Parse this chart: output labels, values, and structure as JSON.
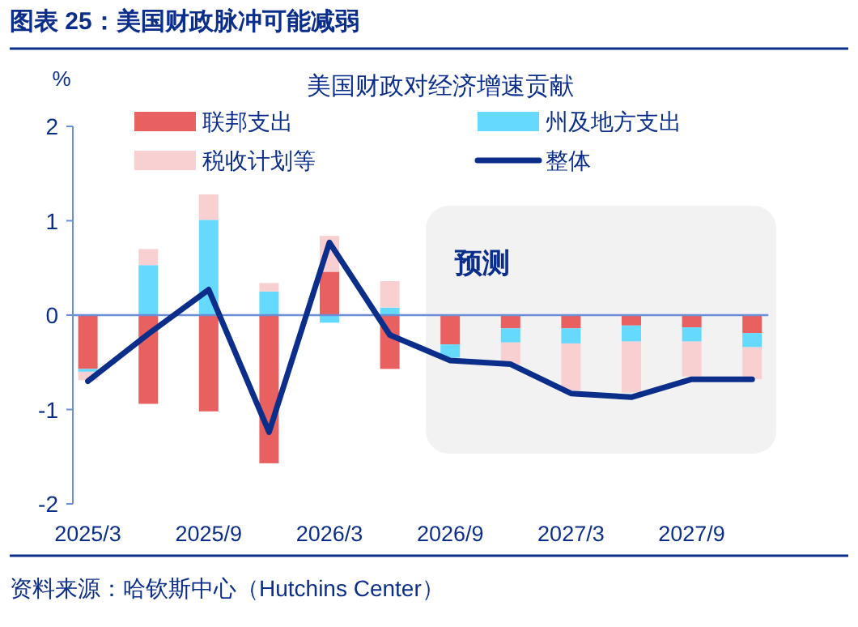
{
  "chart_data": {
    "type": "bar",
    "stacked": true,
    "title": "图表 25：美国财政脉冲可能减弱",
    "subtitle": "美国财政对经济增速贡献",
    "ylabel": "%",
    "categories": [
      "2025/3",
      null,
      "2025/9",
      null,
      "2026/3",
      null,
      "2026/9",
      null,
      "2027/3",
      null,
      "2027/9",
      null
    ],
    "series": [
      {
        "name": "联邦支出",
        "color": "#e86060",
        "values": [
          -0.57,
          -0.94,
          -1.02,
          -1.57,
          0.46,
          -0.57,
          -0.31,
          -0.14,
          -0.14,
          -0.11,
          -0.13,
          -0.19
        ]
      },
      {
        "name": "州及地方支出",
        "color": "#66d9ff",
        "values": [
          -0.03,
          0.53,
          1.01,
          0.25,
          -0.08,
          0.08,
          -0.14,
          -0.15,
          -0.16,
          -0.17,
          -0.15,
          -0.15
        ]
      },
      {
        "name": "税收计划等",
        "color": "#f8d0d2",
        "values": [
          -0.09,
          0.17,
          0.27,
          0.09,
          0.38,
          0.28,
          null,
          -0.23,
          -0.5,
          -0.54,
          -0.37,
          -0.34
        ]
      },
      {
        "name": "整体",
        "type": "line",
        "color": "#0b2e8a",
        "values": [
          -0.7,
          -0.2,
          0.27,
          -1.24,
          0.77,
          -0.21,
          -0.48,
          -0.52,
          -0.83,
          -0.87,
          -0.68,
          -0.68
        ]
      }
    ],
    "ylim": [
      -2,
      2
    ],
    "yticks": [
      -2,
      -1,
      0,
      1,
      2
    ],
    "legend": "top",
    "ref_lines": [
      {
        "axis": "y",
        "value": 0,
        "color": "#6b8ed6"
      }
    ],
    "annotations": [
      "预测",
      "资料来源：哈钦斯中心（Hutchins Center）"
    ]
  }
}
